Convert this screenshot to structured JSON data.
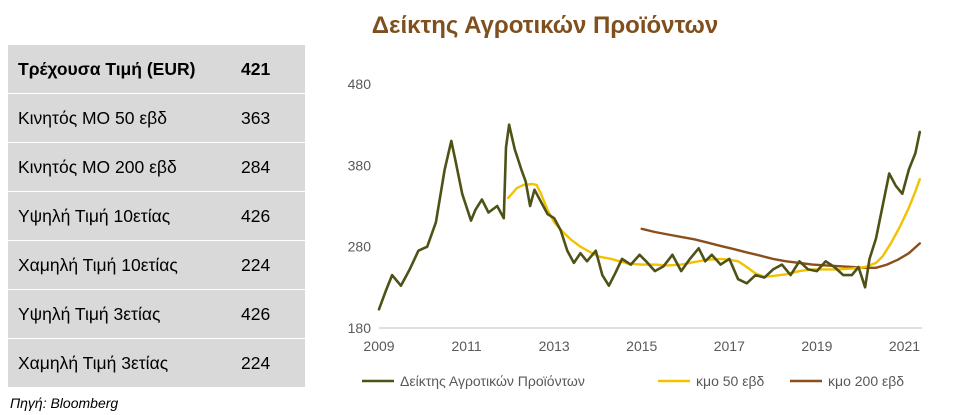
{
  "title": "Δείκτης Αγροτικών Προϊόντων",
  "source": "Πηγή: Bloomberg",
  "table": {
    "rows": [
      {
        "label": "Τρέχουσα Τιμή (EUR)",
        "value": "421",
        "bold": true
      },
      {
        "label": "Κινητός ΜΟ 50 εβδ",
        "value": "363"
      },
      {
        "label": "Κινητός ΜΟ 200 εβδ",
        "value": "284"
      },
      {
        "label": "Υψηλή Τιμή 10ετίας",
        "value": "426"
      },
      {
        "label": "Χαμηλή Τιμή 10ετίας",
        "value": "224"
      },
      {
        "label": "Υψηλή Τιμή 3ετίας",
        "value": "426"
      },
      {
        "label": "Χαμηλή Τιμή 3ετίας",
        "value": "224"
      }
    ]
  },
  "colors": {
    "title": "#7f4f1e",
    "index": "#4f5216",
    "ma50": "#f2c200",
    "ma200": "#8a4f1c",
    "table_bg": "#d9d9d9"
  },
  "chart_data": {
    "type": "line",
    "title": "Δείκτης Αγροτικών Προϊόντων",
    "xlim": [
      2009,
      2021.4
    ],
    "ylim": [
      180,
      480
    ],
    "x_ticks": [
      2009,
      2011,
      2013,
      2015,
      2017,
      2019,
      2021
    ],
    "y_ticks": [
      180,
      280,
      380,
      480
    ],
    "legend_position": "bottom",
    "series": [
      {
        "name": "Δείκτης Αγροτικών Προϊόντων",
        "color": "#4f5216",
        "x": [
          2009.0,
          2009.15,
          2009.3,
          2009.5,
          2009.7,
          2009.9,
          2010.1,
          2010.3,
          2010.5,
          2010.65,
          2010.75,
          2010.9,
          2011.1,
          2011.2,
          2011.35,
          2011.5,
          2011.7,
          2011.85,
          2011.9,
          2011.97,
          2012.1,
          2012.25,
          2012.35,
          2012.45,
          2012.55,
          2012.7,
          2012.85,
          2013.0,
          2013.15,
          2013.3,
          2013.45,
          2013.6,
          2013.75,
          2013.95,
          2014.1,
          2014.25,
          2014.4,
          2014.55,
          2014.75,
          2014.95,
          2015.1,
          2015.3,
          2015.5,
          2015.7,
          2015.9,
          2016.1,
          2016.3,
          2016.45,
          2016.6,
          2016.8,
          2017.0,
          2017.2,
          2017.4,
          2017.6,
          2017.8,
          2018.0,
          2018.2,
          2018.4,
          2018.6,
          2018.8,
          2019.0,
          2019.2,
          2019.4,
          2019.6,
          2019.8,
          2019.95,
          2020.1,
          2020.2,
          2020.35,
          2020.5,
          2020.65,
          2020.8,
          2020.95,
          2021.1,
          2021.25,
          2021.35
        ],
        "y": [
          203,
          225,
          245,
          232,
          252,
          275,
          280,
          310,
          375,
          410,
          385,
          345,
          312,
          325,
          338,
          322,
          330,
          315,
          402,
          430,
          400,
          375,
          360,
          330,
          350,
          335,
          320,
          315,
          300,
          275,
          260,
          272,
          262,
          275,
          245,
          232,
          248,
          265,
          258,
          270,
          262,
          250,
          256,
          270,
          250,
          265,
          278,
          262,
          270,
          258,
          265,
          240,
          235,
          245,
          242,
          252,
          258,
          245,
          262,
          252,
          250,
          262,
          255,
          245,
          245,
          255,
          230,
          265,
          290,
          330,
          370,
          355,
          345,
          375,
          395,
          421
        ]
      },
      {
        "name": "κμο 50 εβδ",
        "color": "#f2c200",
        "x": [
          2011.95,
          2012.15,
          2012.3,
          2012.5,
          2012.6,
          2012.7,
          2012.85,
          2013.0,
          2013.2,
          2013.4,
          2013.6,
          2013.8,
          2014.0,
          2014.3,
          2014.5,
          2014.7,
          2015.0,
          2015.3,
          2015.6,
          2015.9,
          2016.2,
          2016.5,
          2016.8,
          2017.0,
          2017.2,
          2017.4,
          2017.6,
          2017.8,
          2018.0,
          2018.3,
          2018.6,
          2018.9,
          2019.2,
          2019.5,
          2019.8,
          2020.1,
          2020.35,
          2020.5,
          2020.7,
          2020.9,
          2021.1,
          2021.25,
          2021.35
        ],
        "y": [
          340,
          352,
          356,
          357,
          356,
          345,
          325,
          310,
          298,
          288,
          280,
          274,
          268,
          265,
          262,
          259,
          258,
          258,
          257,
          258,
          261,
          264,
          265,
          264,
          262,
          255,
          247,
          243,
          244,
          246,
          250,
          252,
          252,
          252,
          253,
          255,
          260,
          268,
          285,
          305,
          328,
          348,
          363
        ]
      },
      {
        "name": "κμο 200 εβδ",
        "color": "#8a4f1c",
        "x": [
          2015.0,
          2015.3,
          2015.6,
          2015.9,
          2016.2,
          2016.5,
          2016.8,
          2017.1,
          2017.4,
          2017.7,
          2018.0,
          2018.3,
          2018.6,
          2018.9,
          2019.2,
          2019.5,
          2019.8,
          2020.1,
          2020.35,
          2020.6,
          2020.85,
          2021.1,
          2021.35
        ],
        "y": [
          302,
          298,
          295,
          292,
          289,
          285,
          281,
          277,
          273,
          269,
          265,
          262,
          260,
          258,
          257,
          256,
          255,
          254,
          254,
          258,
          264,
          272,
          284
        ]
      }
    ]
  }
}
